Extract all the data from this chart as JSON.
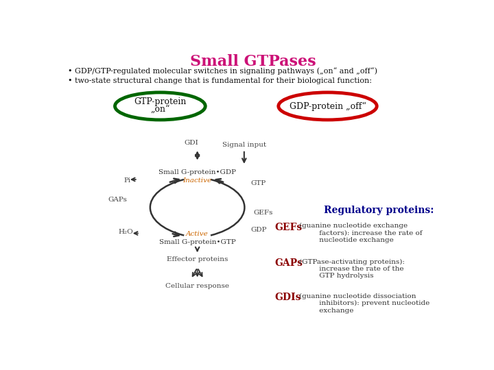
{
  "title": "Small GTPases",
  "title_color": "#CC1177",
  "title_fontsize": 16,
  "bullet1": "GDP/GTP-regulated molecular switches in signaling pathways („on“ and „off“)",
  "bullet2": "two-state structural change that is fundamental for their biological function:",
  "ellipse1_label1": "GTP-protein",
  "ellipse1_label2": "„on“",
  "ellipse1_color": "#006600",
  "ellipse2_label": "GDP-protein „off“",
  "ellipse2_color": "#CC0000",
  "reg_title": "Regulatory proteins:",
  "reg_title_color": "#00008B",
  "gefs_label": "GEFs",
  "gefs_text": "(guanine nucleotide exchange\n        factors): increase the rate of\n        nucleotide exchange",
  "gaps_label": "GAPs",
  "gaps_text": "(GTPase-activating proteins):\n        increase the rate of the\n        GTP hydrolysis",
  "gdis_label": "GDIs",
  "gdis_text": "(guanine nucleotide dissociation\n        inhibitors): prevent nucleotide\n        exchange",
  "label_color": "#8B0000",
  "text_color": "#333333",
  "bg_color": "#FFFFFF",
  "inactive_color": "#CC6600",
  "active_color": "#CC6600",
  "arrow_color": "#333333",
  "diagram_label_color": "#444444"
}
